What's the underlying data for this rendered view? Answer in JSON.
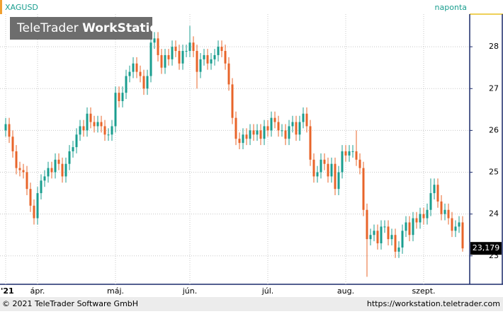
{
  "chart_data": {
    "type": "candlestick",
    "symbol": "XAGUSD",
    "period": "naponta",
    "watermark": {
      "brand": "TeleTrader",
      "product": "WorkStation"
    },
    "footer_left": "© 2021 TeleTrader Software GmbH",
    "footer_right": "https://workstation.teletrader.com",
    "up_color": "#1a9e8f",
    "down_color": "#e8642a",
    "grid": true,
    "ylim": [
      22.32,
      28.78
    ],
    "yticks": [
      23,
      24,
      25,
      26,
      27,
      28
    ],
    "xticks": [
      {
        "value": 0,
        "label": "'21"
      },
      {
        "value": 9,
        "label": "ápr."
      },
      {
        "value": 31,
        "label": "máj."
      },
      {
        "value": 52,
        "label": "jún."
      },
      {
        "value": 74,
        "label": "júl."
      },
      {
        "value": 96,
        "label": "aug."
      },
      {
        "value": 118,
        "label": "szept."
      }
    ],
    "last_price": {
      "value": 23.179,
      "label": "23,179"
    },
    "open": [
      26.0,
      26.15,
      25.85,
      25.5,
      25.1,
      25.05,
      25.0,
      24.6,
      24.2,
      23.9,
      24.5,
      24.8,
      24.9,
      25.1,
      25.0,
      25.3,
      25.2,
      24.9,
      25.2,
      25.5,
      25.6,
      25.9,
      26.1,
      26.0,
      26.4,
      26.2,
      26.1,
      26.2,
      26.1,
      25.9,
      25.9,
      26.1,
      26.9,
      26.7,
      26.9,
      27.3,
      27.4,
      27.6,
      27.4,
      27.3,
      27.0,
      27.3,
      28.1,
      28.2,
      27.8,
      27.5,
      27.8,
      27.7,
      28.0,
      27.9,
      27.6,
      27.9,
      27.9,
      28.1,
      27.9,
      27.4,
      27.7,
      27.8,
      27.6,
      27.7,
      27.8,
      28.0,
      27.9,
      27.6,
      27.1,
      26.3,
      25.8,
      25.7,
      25.9,
      25.8,
      26.0,
      25.9,
      26.0,
      25.8,
      26.1,
      26.0,
      26.3,
      26.2,
      26.0,
      26.0,
      25.8,
      26.1,
      26.2,
      25.9,
      26.2,
      26.4,
      26.1,
      25.3,
      24.9,
      25.0,
      25.3,
      25.2,
      24.9,
      25.2,
      24.6,
      25.0,
      25.5,
      25.4,
      25.5,
      25.5,
      25.3,
      25.1,
      24.1,
      23.4,
      23.5,
      23.6,
      23.3,
      23.7,
      23.7,
      23.4,
      23.5,
      23.1,
      23.2,
      23.6,
      23.8,
      23.5,
      23.9,
      23.8,
      24.0,
      23.9,
      24.1,
      24.5,
      24.7,
      24.3,
      24.0,
      24.1,
      23.9,
      23.6,
      23.7,
      23.8
    ],
    "high": [
      26.3,
      26.3,
      26.0,
      25.65,
      25.25,
      25.2,
      25.15,
      24.75,
      24.35,
      24.65,
      24.95,
      25.05,
      25.25,
      25.25,
      25.45,
      25.45,
      25.35,
      25.35,
      25.65,
      25.75,
      26.05,
      26.25,
      26.25,
      26.55,
      26.55,
      26.35,
      26.35,
      26.35,
      26.25,
      26.05,
      26.25,
      27.05,
      27.05,
      27.05,
      27.45,
      27.55,
      27.75,
      27.75,
      27.55,
      27.45,
      27.45,
      28.7,
      28.35,
      28.35,
      27.95,
      27.95,
      27.95,
      28.15,
      28.15,
      28.05,
      28.05,
      28.05,
      28.5,
      28.25,
      28.05,
      27.85,
      27.95,
      27.95,
      27.85,
      27.95,
      28.15,
      28.15,
      28.05,
      27.75,
      27.25,
      26.45,
      25.95,
      26.05,
      26.05,
      26.15,
      26.15,
      26.15,
      26.15,
      26.25,
      26.25,
      26.45,
      26.45,
      26.35,
      26.15,
      26.15,
      26.25,
      26.35,
      26.35,
      26.35,
      26.55,
      26.55,
      26.25,
      25.45,
      25.15,
      25.45,
      25.45,
      25.35,
      25.35,
      25.35,
      25.15,
      25.65,
      25.65,
      25.65,
      25.65,
      26.0,
      25.45,
      25.25,
      24.25,
      23.65,
      23.75,
      23.75,
      23.85,
      23.85,
      23.85,
      23.65,
      23.65,
      23.35,
      23.75,
      23.95,
      23.95,
      24.05,
      24.05,
      24.15,
      24.15,
      24.25,
      24.85,
      24.85,
      24.85,
      24.45,
      24.25,
      24.25,
      24.05,
      23.85,
      23.95,
      23.95
    ],
    "low": [
      25.85,
      25.7,
      25.35,
      24.95,
      24.9,
      24.85,
      24.45,
      24.05,
      23.75,
      23.75,
      24.35,
      24.65,
      24.75,
      24.85,
      24.85,
      25.05,
      24.75,
      24.75,
      25.05,
      25.35,
      25.45,
      25.75,
      25.85,
      25.85,
      26.05,
      25.95,
      25.95,
      25.95,
      25.75,
      25.75,
      25.75,
      25.95,
      26.55,
      26.55,
      26.75,
      27.15,
      27.25,
      27.25,
      27.15,
      26.85,
      26.85,
      27.15,
      27.95,
      27.65,
      27.35,
      27.35,
      27.55,
      27.55,
      27.75,
      27.45,
      27.45,
      27.75,
      27.75,
      27.75,
      27.0,
      27.25,
      27.55,
      27.45,
      27.45,
      27.55,
      27.65,
      27.75,
      27.45,
      26.95,
      26.15,
      25.65,
      25.55,
      25.55,
      25.65,
      25.65,
      25.75,
      25.75,
      25.65,
      25.65,
      25.85,
      25.85,
      26.05,
      25.85,
      25.85,
      25.65,
      25.65,
      25.95,
      25.75,
      25.75,
      26.05,
      25.95,
      25.15,
      24.75,
      24.75,
      24.85,
      25.05,
      24.75,
      24.75,
      24.45,
      24.45,
      24.85,
      25.25,
      25.25,
      25.35,
      25.15,
      24.95,
      23.95,
      22.5,
      23.25,
      23.35,
      23.15,
      23.15,
      23.55,
      23.25,
      23.25,
      22.95,
      22.95,
      23.05,
      23.45,
      23.35,
      23.35,
      23.65,
      23.65,
      23.75,
      23.75,
      23.95,
      24.35,
      24.15,
      23.85,
      23.85,
      23.75,
      23.45,
      23.45,
      23.55,
      23.1
    ],
    "close": [
      26.15,
      25.85,
      25.5,
      25.1,
      25.05,
      25.0,
      24.6,
      24.2,
      23.9,
      24.5,
      24.8,
      24.9,
      25.1,
      25.0,
      25.3,
      25.2,
      24.9,
      25.2,
      25.5,
      25.6,
      25.9,
      26.1,
      26.0,
      26.4,
      26.2,
      26.1,
      26.2,
      26.1,
      25.9,
      25.9,
      26.1,
      26.9,
      26.7,
      26.9,
      27.3,
      27.4,
      27.6,
      27.4,
      27.3,
      27.0,
      27.3,
      28.1,
      28.2,
      27.8,
      27.5,
      27.8,
      27.7,
      28.0,
      27.9,
      27.6,
      27.9,
      27.9,
      28.1,
      27.9,
      27.4,
      27.7,
      27.8,
      27.6,
      27.7,
      27.8,
      28.0,
      27.9,
      27.6,
      27.1,
      26.3,
      25.8,
      25.7,
      25.9,
      25.8,
      26.0,
      25.9,
      26.0,
      25.8,
      26.1,
      26.0,
      26.3,
      26.2,
      26.0,
      26.0,
      25.8,
      26.1,
      26.2,
      25.9,
      26.2,
      26.4,
      26.1,
      25.3,
      24.9,
      25.0,
      25.3,
      25.2,
      24.9,
      25.2,
      24.6,
      25.0,
      25.5,
      25.4,
      25.5,
      25.5,
      25.3,
      25.1,
      24.1,
      23.4,
      23.5,
      23.6,
      23.3,
      23.7,
      23.7,
      23.4,
      23.5,
      23.1,
      23.2,
      23.6,
      23.8,
      23.5,
      23.9,
      23.8,
      24.0,
      23.9,
      24.1,
      24.5,
      24.7,
      24.3,
      24.0,
      24.1,
      23.9,
      23.6,
      23.7,
      23.8,
      23.179
    ]
  }
}
